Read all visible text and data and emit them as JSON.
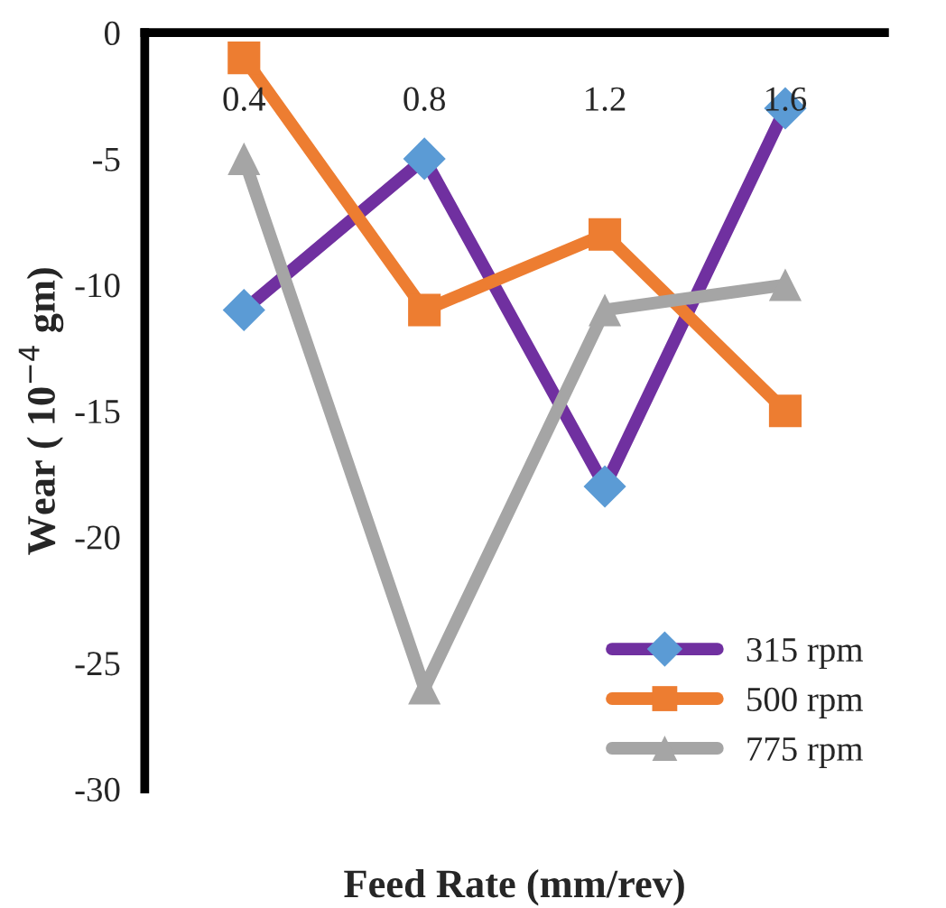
{
  "chart_data": {
    "type": "line",
    "xlabel": "Feed Rate (mm/rev)",
    "ylabel": "Wear ( 10$^{−4}$ gm)",
    "categories": [
      "0.4",
      "0.8",
      "1.2",
      "1.6"
    ],
    "series": [
      {
        "name": "315 rpm",
        "color": "#7030a0",
        "colors": [
          "#5b9bd5",
          "#5b9bd5",
          "#5b9bd5",
          "#5b9bd5"
        ],
        "marker": "diamond",
        "values": [
          -11,
          -5,
          -18,
          -3
        ]
      },
      {
        "name": "500 rpm",
        "color": "#ed7d31",
        "marker": "square",
        "values": [
          -1,
          -11,
          -8,
          -15
        ]
      },
      {
        "name": "775 rpm",
        "color": "#a5a5a5",
        "marker": "triangle",
        "values": [
          -5,
          -26,
          -11,
          -10
        ]
      }
    ],
    "ylim": [
      -30,
      0
    ],
    "yticks": [
      0,
      -5,
      -10,
      -15,
      -20,
      -25,
      -30
    ],
    "grid": false,
    "legend": "bottom right",
    "line_style": "solid"
  }
}
